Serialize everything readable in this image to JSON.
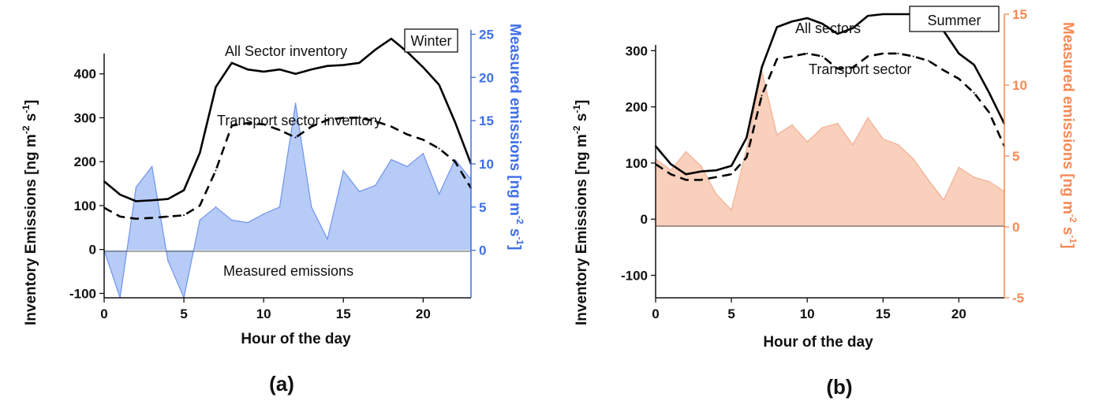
{
  "chart_data": [
    {
      "type": "line",
      "panel_label": "(a)",
      "season": "Winter",
      "xlabel": "Hour of the day",
      "ylabel": "Inventory Emissions [ng m-2 s-1]",
      "y2label": "Measured emissions [ng m-2 s-1]",
      "xlim": [
        0,
        23
      ],
      "ylim": [
        -110,
        500
      ],
      "y2lim": [
        -5.5,
        25.5
      ],
      "xticks": [
        0,
        5,
        10,
        15,
        20
      ],
      "yticks": [
        -100,
        0,
        100,
        200,
        300,
        400
      ],
      "y2ticks": [
        0,
        5,
        10,
        15,
        20,
        25
      ],
      "colors": {
        "inventory": "#000000",
        "measured_fill": "#b3c8f7",
        "measured_line": "#6f94ee",
        "axis2": "#3f6fe6"
      },
      "annotations": [
        "All Sector inventory",
        "Transport sector inventory",
        "Measured emissions"
      ],
      "series": [
        {
          "name": "All Sector inventory",
          "axis": "left",
          "style": "solid",
          "x": [
            0,
            1,
            2,
            3,
            4,
            5,
            6,
            7,
            8,
            9,
            10,
            11,
            12,
            13,
            14,
            15,
            16,
            17,
            18,
            19,
            20,
            21,
            22,
            23
          ],
          "values": [
            155,
            125,
            110,
            112,
            115,
            135,
            220,
            370,
            425,
            410,
            405,
            410,
            400,
            410,
            418,
            420,
            425,
            455,
            480,
            450,
            415,
            375,
            290,
            195
          ]
        },
        {
          "name": "Transport sector inventory",
          "axis": "left",
          "style": "dashed",
          "x": [
            0,
            1,
            2,
            3,
            4,
            5,
            6,
            7,
            8,
            9,
            10,
            11,
            12,
            13,
            14,
            15,
            16,
            17,
            18,
            19,
            20,
            21,
            22,
            23
          ],
          "values": [
            95,
            75,
            70,
            72,
            75,
            78,
            100,
            180,
            282,
            288,
            285,
            272,
            255,
            280,
            295,
            300,
            300,
            292,
            280,
            262,
            250,
            230,
            200,
            140
          ]
        },
        {
          "name": "Measured emissions",
          "axis": "right",
          "style": "area",
          "x": [
            0,
            1,
            2,
            3,
            4,
            5,
            6,
            7,
            8,
            9,
            10,
            11,
            12,
            13,
            14,
            15,
            16,
            17,
            18,
            19,
            20,
            21,
            22,
            23
          ],
          "values": [
            0,
            -5.5,
            7.3,
            9.7,
            -1.2,
            -5.5,
            3.5,
            5,
            3.5,
            3.2,
            4.2,
            5,
            17,
            5,
            1.3,
            9.2,
            6.8,
            7.5,
            10.5,
            9.7,
            11.2,
            6.5,
            10.5,
            8.2
          ]
        }
      ]
    },
    {
      "type": "line",
      "panel_label": "(b)",
      "season": "Summer",
      "xlabel": "Hour of the day",
      "ylabel": "Inventory Emissions [ng m-2 s-1]",
      "y2label": "Measured emissions [ng m-2 s-1]",
      "xlim": [
        0,
        23
      ],
      "ylim": [
        -140,
        365
      ],
      "y2lim": [
        -5,
        15
      ],
      "xticks": [
        0,
        5,
        10,
        15,
        20
      ],
      "yticks": [
        -100,
        0,
        100,
        200,
        300
      ],
      "y2ticks": [
        -5,
        0,
        5,
        10,
        15
      ],
      "colors": {
        "inventory": "#000000",
        "measured_fill": "#f8cdb8",
        "measured_line": "#f2b096",
        "axis2": "#f58a55"
      },
      "annotations": [
        "All sectors",
        "Transport sector"
      ],
      "series": [
        {
          "name": "All sectors",
          "axis": "left",
          "style": "solid",
          "x": [
            0,
            1,
            2,
            3,
            4,
            5,
            6,
            7,
            8,
            9,
            10,
            11,
            12,
            13,
            14,
            15,
            16,
            17,
            18,
            19,
            20,
            21,
            22,
            23
          ],
          "values": [
            130,
            98,
            80,
            85,
            87,
            95,
            145,
            270,
            342,
            352,
            358,
            348,
            330,
            340,
            362,
            365,
            365,
            365,
            362,
            335,
            295,
            275,
            225,
            170
          ]
        },
        {
          "name": "Transport sector",
          "axis": "left",
          "style": "dashed",
          "x": [
            0,
            1,
            2,
            3,
            4,
            5,
            6,
            7,
            8,
            9,
            10,
            11,
            12,
            13,
            14,
            15,
            16,
            17,
            18,
            19,
            20,
            21,
            22,
            23
          ],
          "values": [
            98,
            80,
            70,
            70,
            75,
            80,
            110,
            220,
            285,
            290,
            295,
            290,
            268,
            270,
            290,
            295,
            295,
            290,
            282,
            265,
            250,
            225,
            190,
            130
          ]
        },
        {
          "name": "Measured emissions",
          "axis": "right",
          "style": "area",
          "x": [
            0,
            1,
            2,
            3,
            4,
            5,
            6,
            7,
            8,
            9,
            10,
            11,
            12,
            13,
            14,
            15,
            16,
            17,
            18,
            19,
            20,
            21,
            22,
            23
          ],
          "values": [
            4.8,
            4,
            5.3,
            4.3,
            2.3,
            1.2,
            5.5,
            11,
            6.5,
            7.2,
            6,
            7,
            7.3,
            5.8,
            7.7,
            6.2,
            5.8,
            4.8,
            3.3,
            1.9,
            4.2,
            3.5,
            3.2,
            2.5
          ]
        }
      ]
    }
  ]
}
